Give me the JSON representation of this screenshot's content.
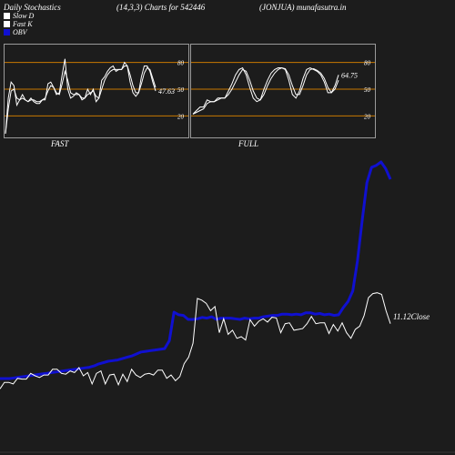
{
  "header": {
    "left": "Daily Stochastics",
    "params": "(14,3,3) Charts for 542446",
    "right": "(JONJUA) munafasutra.in"
  },
  "legend": [
    {
      "label": "Slow  D",
      "color": "#ffffff"
    },
    {
      "label": "Fast K",
      "color": "#ffffff"
    },
    {
      "label": "OBV",
      "color": "#1010d0"
    }
  ],
  "colors": {
    "background": "#1c1c1c",
    "panel_border": "#9a9a9a",
    "levels": "#c87800",
    "obv": "#1010d0",
    "price": "#ffffff"
  },
  "chart_data": [
    {
      "type": "line",
      "title": "FAST",
      "ylim": [
        0,
        100
      ],
      "ticks": [
        "80",
        "50",
        "20"
      ],
      "levels": [
        80,
        50,
        20
      ],
      "last_value_label": "47.63",
      "series": [
        {
          "values": [
            0,
            40,
            58,
            54,
            32,
            38,
            44,
            38,
            36,
            40,
            36,
            34,
            34,
            38,
            38,
            56,
            58,
            52,
            44,
            46,
            66,
            84,
            50,
            40,
            42,
            46,
            44,
            38,
            40,
            50,
            44,
            50,
            36,
            40,
            60,
            64,
            70,
            74,
            76,
            70,
            72,
            72,
            80,
            76,
            58,
            46,
            42,
            46,
            64,
            76,
            76,
            70,
            58,
            48
          ]
        },
        {
          "values": [
            0,
            28,
            48,
            50,
            40,
            38,
            40,
            38,
            36,
            38,
            38,
            36,
            36,
            38,
            40,
            48,
            54,
            52,
            46,
            44,
            56,
            70,
            60,
            46,
            44,
            44,
            44,
            40,
            40,
            44,
            46,
            48,
            42,
            40,
            50,
            60,
            66,
            70,
            72,
            72,
            72,
            72,
            76,
            76,
            66,
            54,
            46,
            46,
            56,
            68,
            74,
            72,
            62,
            52
          ]
        }
      ]
    },
    {
      "type": "line",
      "title": "FULL",
      "ylim": [
        0,
        100
      ],
      "ticks": [
        "80",
        "50",
        "20"
      ],
      "levels": [
        80,
        50,
        20
      ],
      "last_value_label": "64.75",
      "series": [
        {
          "values": [
            22,
            26,
            30,
            30,
            38,
            36,
            36,
            40,
            40,
            40,
            48,
            56,
            66,
            72,
            74,
            66,
            52,
            40,
            36,
            38,
            50,
            60,
            68,
            72,
            74,
            74,
            72,
            60,
            44,
            40,
            48,
            62,
            72,
            74,
            72,
            70,
            66,
            58,
            46,
            46,
            54,
            66
          ]
        },
        {
          "values": [
            22,
            24,
            26,
            28,
            34,
            36,
            36,
            38,
            40,
            40,
            44,
            50,
            58,
            66,
            72,
            70,
            60,
            48,
            40,
            38,
            44,
            54,
            62,
            68,
            72,
            74,
            73,
            66,
            54,
            44,
            44,
            54,
            66,
            72,
            73,
            71,
            68,
            62,
            52,
            46,
            50,
            60
          ]
        }
      ]
    },
    {
      "type": "line",
      "last_value_label": "11.12Close",
      "series": [
        {
          "name": "OBV",
          "values": [
            0,
            0,
            0,
            1,
            2,
            3,
            4,
            5,
            6,
            7,
            8,
            9,
            10,
            11,
            12,
            13,
            14,
            15,
            16,
            17,
            19,
            22,
            24,
            26,
            27,
            28,
            30,
            32,
            34,
            37,
            40,
            41,
            42,
            43,
            44,
            45,
            57,
            100,
            96,
            95,
            89,
            89,
            90,
            92,
            91,
            93,
            89,
            91,
            91,
            91,
            90,
            89,
            91,
            90,
            91,
            91,
            93,
            94,
            95,
            95,
            97,
            97,
            96,
            97,
            96,
            99,
            99,
            97,
            98,
            96,
            97,
            95,
            96,
            107,
            116,
            132,
            177,
            238,
            295,
            318,
            321,
            326,
            316,
            300
          ]
        },
        {
          "name": "Close",
          "values": [
            3,
            11,
            11,
            9,
            16,
            15,
            15,
            22,
            19,
            17,
            20,
            20,
            27,
            27,
            22,
            21,
            25,
            23,
            29,
            19,
            23,
            9,
            22,
            25,
            9,
            20,
            21,
            8,
            21,
            12,
            27,
            20,
            17,
            21,
            22,
            20,
            26,
            26,
            16,
            20,
            13,
            18,
            34,
            42,
            59,
            114,
            112,
            108,
            99,
            104,
            72,
            89,
            70,
            75,
            65,
            67,
            63,
            88,
            80,
            86,
            89,
            85,
            91,
            90,
            72,
            83,
            84,
            75,
            76,
            77,
            83,
            92,
            83,
            84,
            84,
            71,
            82,
            74,
            84,
            72,
            65,
            76,
            80,
            93,
            115,
            120,
            121,
            119,
            99,
            83
          ]
        }
      ]
    }
  ]
}
